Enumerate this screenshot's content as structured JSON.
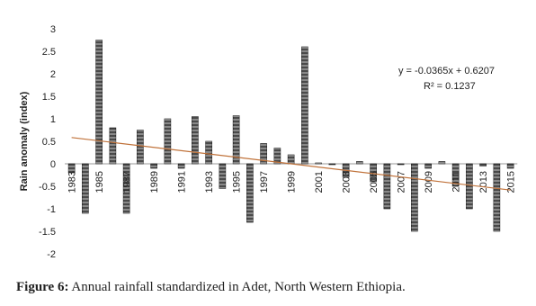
{
  "chart_data": {
    "type": "bar",
    "y_label": "Rain anomaly (index)",
    "categories": [
      "1983",
      null,
      "1985",
      null,
      "1987",
      null,
      "1989",
      null,
      "1991",
      null,
      "1993",
      null,
      "1995",
      null,
      "1997",
      null,
      "1999",
      null,
      "2001",
      null,
      "2003",
      null,
      "2005",
      null,
      "2007",
      null,
      "2009",
      null,
      "2011",
      null,
      "2013",
      null,
      "2015"
    ],
    "values": [
      -0.2,
      -1.1,
      2.75,
      0.8,
      -1.1,
      0.75,
      -0.1,
      1.0,
      -0.1,
      1.05,
      0.5,
      -0.55,
      1.07,
      -1.3,
      0.45,
      0.35,
      0.2,
      2.6,
      0.02,
      -0.02,
      -0.3,
      0.05,
      -0.4,
      -1.0,
      -0.02,
      -1.5,
      -0.1,
      0.05,
      -0.5,
      -1.0,
      -0.05,
      -1.5,
      -0.1
    ],
    "color": "#4a4a4a",
    "ylim": [
      -2,
      3
    ],
    "yticks": [
      -2,
      -1.5,
      -1,
      -0.5,
      0,
      0.5,
      1,
      1.5,
      2,
      2.5,
      3
    ],
    "trendline": {
      "color": "#c0723a",
      "slope": -0.0365,
      "intercept": 0.6207,
      "equation": "y = -0.0365x + 0.6207",
      "r2": "R² = 0.1237"
    },
    "caption_label": "Figure 6:",
    "caption_text": " Annual rainfall standardized in Adet, North Western Ethiopia."
  }
}
